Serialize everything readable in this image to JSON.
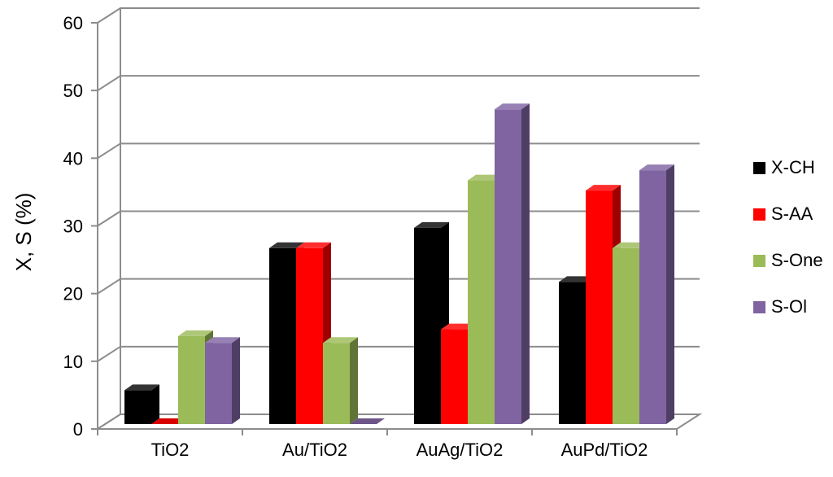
{
  "chart_data": {
    "type": "bar",
    "title": "",
    "xlabel": "",
    "ylabel": "X, S (%)",
    "ylim": [
      0,
      60
    ],
    "yticks": [
      0,
      10,
      20,
      30,
      40,
      50,
      60
    ],
    "grid": true,
    "legend_position": "right",
    "categories": [
      "TiO2",
      "Au/TiO2",
      "AuAg/TiO2",
      "AuPd/TiO2"
    ],
    "series": [
      {
        "name": "X-CH",
        "color": "#000000",
        "values": [
          5,
          26,
          29,
          21
        ]
      },
      {
        "name": "S-AA",
        "color": "#ff0000",
        "values": [
          0,
          26,
          14,
          34.5
        ]
      },
      {
        "name": "S-One",
        "color": "#9bbb59",
        "values": [
          13,
          12,
          36,
          26
        ]
      },
      {
        "name": "S-Ol",
        "color": "#8064a2",
        "values": [
          12,
          0,
          46.5,
          37.5
        ]
      }
    ]
  }
}
